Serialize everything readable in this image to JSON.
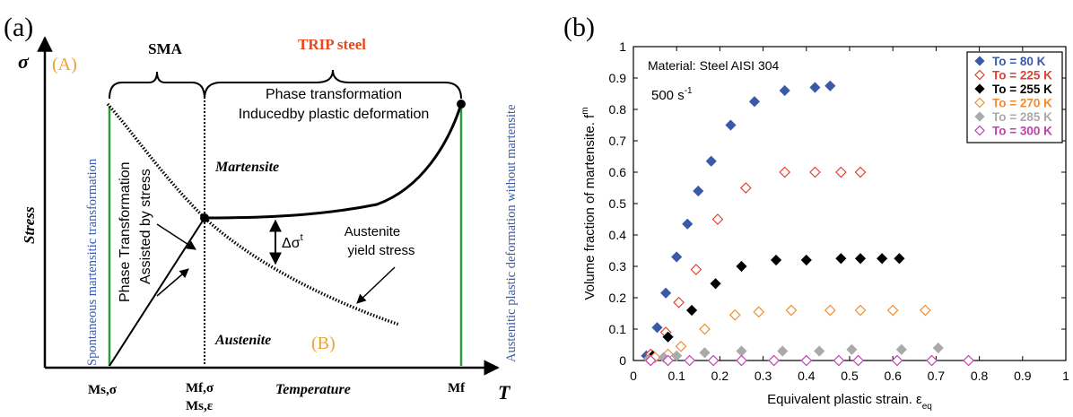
{
  "colors": {
    "axis": "#000000",
    "green_line": "#2e9b3a",
    "blue_label": "#3a5aa8",
    "orange_label": "#f0a030",
    "trip_red": "#e8481e"
  },
  "panel_a": {
    "panel_label": "(a)",
    "y_symbol": "σ",
    "y_axis_label": "Stress",
    "x_axis_label": "Temperature",
    "x_symbol": "T",
    "region_a_label": "(A)",
    "region_b_label": "(B)",
    "sma_label": "SMA",
    "trip_label": "TRIP steel",
    "phase_plastic_line1": "Phase transformation",
    "phase_plastic_line2": "Inducedby plastic deformation",
    "martensite_label": "Martensite",
    "austenite_label": "Austenite",
    "austenite_yield_line1": "Austenite",
    "austenite_yield_line2": "yield stress",
    "delta_sigma_label": "Δσ",
    "delta_sigma_sup": "t",
    "stress_assisted_line1": "Phase Transformation",
    "stress_assisted_line2": "Assisted by stress",
    "left_vertical_label": "Spontaneous martensitic transformation",
    "right_vertical_label": "Austenitic plastic deformation without martensite",
    "tick_ms_sigma": "Ms,σ",
    "tick_mf_sigma": "Mf,σ",
    "tick_ms_eps": "Ms,ε",
    "tick_mf": "Mf"
  },
  "panel_b": {
    "panel_label": "(b)",
    "material_label": "Material: Steel AISI 304",
    "rate_label": "500 s",
    "rate_sup": "-1"
  },
  "chart_data": {
    "type": "scatter",
    "title": "",
    "xlabel": "Equivalent plastic strain. ε",
    "xlabel_sub": "eq",
    "ylabel": "Volume fraction of martensite. f",
    "ylabel_sup": "m",
    "xlim": [
      0,
      1
    ],
    "ylim": [
      0,
      1
    ],
    "xticks": [
      0,
      0.1,
      0.2,
      0.3,
      0.4,
      0.5,
      0.6,
      0.7,
      0.8,
      0.9,
      1
    ],
    "yticks": [
      0,
      0.1,
      0.2,
      0.3,
      0.4,
      0.5,
      0.6,
      0.7,
      0.8,
      0.9,
      1
    ],
    "tick_labels_x": [
      "0",
      "0.1",
      "0.2",
      "0.3",
      "0.4",
      "0.5",
      "0.6",
      "0.7",
      "0.8",
      "0.9",
      "1"
    ],
    "tick_labels_y": [
      "0",
      "0.1",
      "0.2",
      "0.3",
      "0.4",
      "0.5",
      "0.6",
      "0.7",
      "0.8",
      "0.9",
      "1"
    ],
    "grid": false,
    "legend_position": "top-right",
    "series": [
      {
        "name": "To = 80 K",
        "color": "#3a5aa8",
        "filled": true,
        "x": [
          0.03,
          0.055,
          0.075,
          0.1,
          0.125,
          0.15,
          0.18,
          0.225,
          0.28,
          0.35,
          0.42,
          0.455
        ],
        "y": [
          0.015,
          0.105,
          0.215,
          0.33,
          0.435,
          0.54,
          0.635,
          0.75,
          0.825,
          0.86,
          0.87,
          0.875
        ]
      },
      {
        "name": "To = 225 K",
        "color": "#e04030",
        "filled": false,
        "x": [
          0.04,
          0.075,
          0.105,
          0.145,
          0.195,
          0.26,
          0.35,
          0.42,
          0.48,
          0.525
        ],
        "y": [
          0.02,
          0.09,
          0.185,
          0.29,
          0.45,
          0.55,
          0.6,
          0.6,
          0.6,
          0.6
        ]
      },
      {
        "name": "To = 255 K",
        "color": "#000000",
        "filled": true,
        "x": [
          0.045,
          0.08,
          0.135,
          0.19,
          0.25,
          0.33,
          0.4,
          0.48,
          0.525,
          0.575,
          0.615
        ],
        "y": [
          0.015,
          0.075,
          0.16,
          0.245,
          0.3,
          0.32,
          0.32,
          0.325,
          0.325,
          0.325,
          0.325
        ]
      },
      {
        "name": "To = 270 K",
        "color": "#f08c2e",
        "filled": false,
        "x": [
          0.05,
          0.08,
          0.11,
          0.165,
          0.235,
          0.29,
          0.365,
          0.455,
          0.525,
          0.6,
          0.675
        ],
        "y": [
          0.01,
          0.02,
          0.045,
          0.1,
          0.145,
          0.155,
          0.16,
          0.16,
          0.16,
          0.16,
          0.16
        ]
      },
      {
        "name": "To = 285 K",
        "color": "#aaaaaa",
        "filled": true,
        "x": [
          0.035,
          0.07,
          0.1,
          0.165,
          0.25,
          0.345,
          0.43,
          0.505,
          0.62,
          0.705
        ],
        "y": [
          0.005,
          0.01,
          0.015,
          0.025,
          0.03,
          0.03,
          0.03,
          0.035,
          0.035,
          0.04
        ]
      },
      {
        "name": "To = 300 K",
        "color": "#c040b0",
        "filled": false,
        "x": [
          0.04,
          0.08,
          0.13,
          0.185,
          0.25,
          0.325,
          0.4,
          0.475,
          0.52,
          0.61,
          0.69,
          0.775
        ],
        "y": [
          0.0,
          0.0,
          0.0,
          0.0,
          0.0,
          0.0,
          0.0,
          0.0,
          0.0,
          0.0,
          0.0,
          0.0
        ]
      }
    ]
  }
}
